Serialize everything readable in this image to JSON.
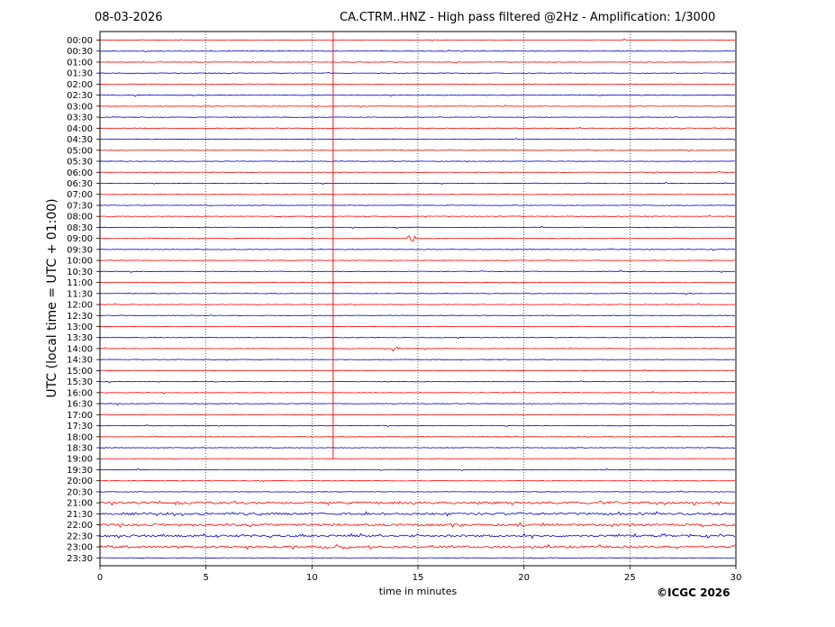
{
  "header": {
    "date": "08-03-2026",
    "title": "CA.CTRM..HNZ - High pass filtered @2Hz - Amplification: 1/3000"
  },
  "footer": {
    "copyright": "©ICGC 2026"
  },
  "chart_data": {
    "type": "line",
    "title": "CA.CTRM..HNZ - High pass filtered @2Hz - Amplification: 1/3000",
    "xlabel": "time in minutes",
    "ylabel": "UTC (local time = UTC + 01:00)",
    "xlim": [
      0,
      30
    ],
    "xticks": [
      0,
      5,
      10,
      15,
      20,
      25,
      30
    ],
    "grid": "vertical dotted",
    "colors": [
      "#ff0000",
      "#0000cc"
    ],
    "rows": [
      "00:00",
      "00:30",
      "01:00",
      "01:30",
      "02:00",
      "02:30",
      "03:00",
      "03:30",
      "04:00",
      "04:30",
      "05:00",
      "05:30",
      "06:00",
      "06:30",
      "07:00",
      "07:30",
      "08:00",
      "08:30",
      "09:00",
      "09:30",
      "10:00",
      "10:30",
      "11:00",
      "11:30",
      "12:00",
      "12:30",
      "13:00",
      "13:30",
      "14:00",
      "14:30",
      "15:00",
      "15:30",
      "16:00",
      "16:30",
      "17:00",
      "17:30",
      "18:00",
      "18:30",
      "19:00",
      "19:30",
      "20:00",
      "20:30",
      "21:00",
      "21:30",
      "22:00",
      "22:30",
      "23:00",
      "23:30"
    ],
    "noisy_rows": [
      "21:00",
      "21:30",
      "22:00",
      "22:30",
      "23:00"
    ],
    "events": [
      {
        "row": "09:00",
        "minute": 14.7
      },
      {
        "row": "14:00",
        "minute": 14.0
      }
    ],
    "vertical_trace": {
      "minute": 11.0,
      "from_row": "00:00",
      "to_row": "19:00"
    }
  }
}
